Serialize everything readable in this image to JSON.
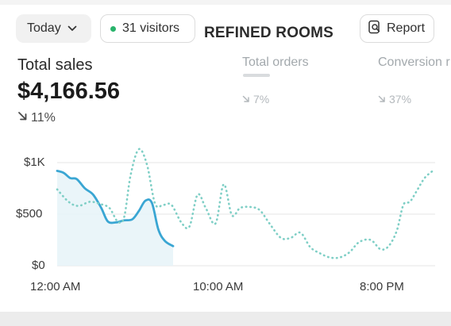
{
  "header": {
    "date_filter": "Today",
    "visitors_label": "31 visitors",
    "brand": "REFINED ROOMS",
    "report_label": "Report"
  },
  "metrics": {
    "total_sales": {
      "label": "Total sales",
      "value": "$4,166.56",
      "change": "11%",
      "direction": "down"
    },
    "total_orders": {
      "label": "Total orders",
      "change": "7%",
      "direction": "down"
    },
    "conversion": {
      "label": "Conversion r",
      "change": "37%",
      "direction": "down"
    }
  },
  "colors": {
    "current_series": "#3aa6d3",
    "comparison_series": "#7fcfc6",
    "visitor_dot": "#29b36b"
  },
  "icons": {
    "chevron": "chevron-down-icon",
    "report": "report-search-icon",
    "trend": "arrow-down-right-icon"
  },
  "chart_data": {
    "type": "line",
    "x_tick_labels": [
      "12:00 AM",
      "10:00 AM",
      "8:00 PM"
    ],
    "y_tick_labels": [
      "$1K",
      "$500",
      "$0"
    ],
    "ylim": [
      0,
      1000
    ],
    "x_range_hours": [
      0,
      23
    ],
    "grid": true,
    "series": [
      {
        "style": "solid",
        "x": [
          0,
          0.4,
          0.8,
          1.2,
          1.7,
          2.2,
          2.7,
          3.1,
          3.6,
          4.1,
          4.6,
          5.0,
          5.4,
          5.8,
          6.2,
          6.6,
          7.1
        ],
        "values": [
          920,
          900,
          850,
          840,
          750,
          690,
          560,
          430,
          420,
          440,
          450,
          530,
          630,
          610,
          350,
          240,
          190
        ]
      },
      {
        "style": "dotted",
        "x": [
          0,
          0.7,
          1.3,
          2.0,
          2.6,
          3.2,
          3.7,
          4.1,
          4.5,
          5.0,
          5.5,
          6.0,
          6.5,
          7.0,
          7.6,
          8.1,
          8.6,
          9.1,
          9.7,
          10.2,
          10.7,
          11.2,
          11.8,
          12.4,
          13.0,
          13.7,
          14.3,
          14.9,
          15.5,
          16.1,
          16.7,
          17.3,
          17.9,
          18.5,
          19.2,
          19.8,
          20.3,
          20.8,
          21.2,
          21.6,
          22.0,
          22.5,
          23.0
        ],
        "values": [
          740,
          620,
          580,
          620,
          600,
          560,
          430,
          470,
          880,
          1130,
          980,
          600,
          590,
          590,
          420,
          380,
          690,
          560,
          410,
          790,
          490,
          560,
          570,
          540,
          410,
          270,
          270,
          320,
          180,
          120,
          80,
          80,
          130,
          230,
          250,
          160,
          190,
          340,
          590,
          620,
          720,
          850,
          920
        ]
      }
    ]
  }
}
